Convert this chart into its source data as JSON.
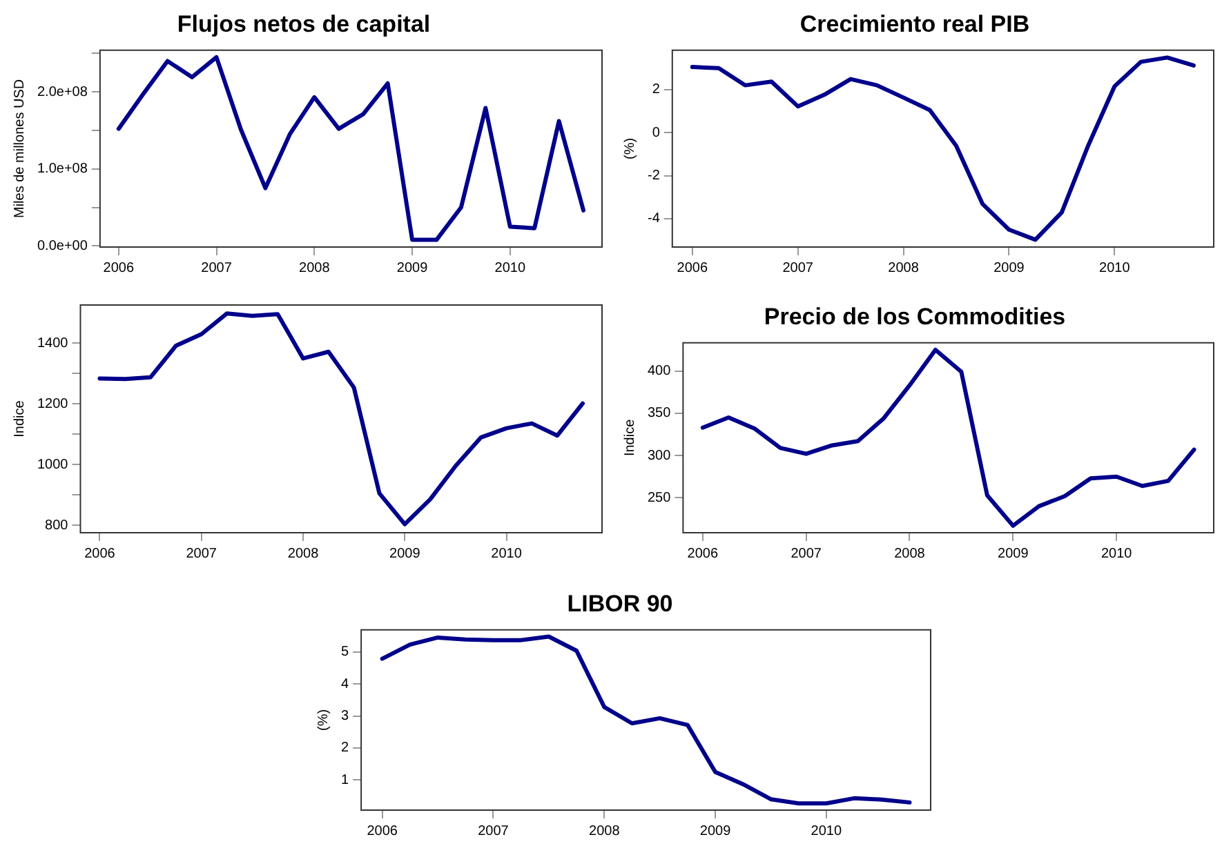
{
  "chart_data": [
    {
      "type": "line",
      "title": "Flujos netos de capital",
      "ylabel": "Miles de millones USD",
      "x": [
        2006,
        2006.25,
        2006.5,
        2006.75,
        2007,
        2007.25,
        2007.5,
        2007.75,
        2008,
        2008.25,
        2008.5,
        2008.75,
        2009,
        2009.25,
        2009.5,
        2009.75,
        2010,
        2010.25,
        2010.5,
        2010.75
      ],
      "series": [
        {
          "color": "#00008b",
          "values": [
            152000000,
            197000000,
            240000000,
            219000000,
            245000000,
            151000000,
            75000000,
            145000000,
            193000000,
            152000000,
            171000000,
            211000000,
            8000000,
            8000000,
            50000000,
            179000000,
            25000000,
            23000000,
            162000000,
            46000000
          ]
        }
      ],
      "xlim": [
        2005.81,
        2010.94
      ],
      "xticks": [
        2006,
        2007,
        2008,
        2009,
        2010
      ],
      "ylim": [
        -1500000,
        254000000
      ],
      "yticks": [
        {
          "value": 0,
          "label": "0.0e+00"
        },
        {
          "value": 50000000,
          "label": null
        },
        {
          "value": 100000000,
          "label": "1.0e+08"
        },
        {
          "value": 150000000,
          "label": null
        },
        {
          "value": 200000000,
          "label": "2.0e+08"
        },
        {
          "value": 250000000,
          "label": null
        }
      ],
      "grid": false,
      "legend": false,
      "line_style": "solid"
    },
    {
      "type": "line",
      "title": "Crecimiento real PIB",
      "ylabel": "(%)",
      "x": [
        2006,
        2006.25,
        2006.5,
        2006.75,
        2007,
        2007.25,
        2007.5,
        2007.75,
        2008,
        2008.25,
        2008.5,
        2008.75,
        2009,
        2009.25,
        2009.5,
        2009.75,
        2010,
        2010.25,
        2010.5,
        2010.75
      ],
      "series": [
        {
          "color": "#00008b",
          "values": [
            3.05,
            3.0,
            2.2,
            2.37,
            1.22,
            1.76,
            2.49,
            2.2,
            1.63,
            1.05,
            -0.61,
            -3.32,
            -4.51,
            -4.98,
            -3.71,
            -0.61,
            2.15,
            3.29,
            3.49,
            3.12
          ]
        }
      ],
      "xlim": [
        2005.81,
        2010.94
      ],
      "xticks": [
        2006,
        2007,
        2008,
        2009,
        2010
      ],
      "ylim": [
        -5.32,
        3.83
      ],
      "yticks": [
        -4,
        -2,
        0,
        2
      ],
      "grid": false,
      "legend": false,
      "line_style": "solid"
    },
    {
      "type": "line",
      "ylabel": "Indice",
      "x": [
        2006,
        2006.25,
        2006.5,
        2006.75,
        2007,
        2007.25,
        2007.5,
        2007.75,
        2008,
        2008.25,
        2008.5,
        2008.75,
        2009,
        2009.25,
        2009.5,
        2009.75,
        2010,
        2010.25,
        2010.5,
        2010.75
      ],
      "series": [
        {
          "color": "#00008b",
          "values": [
            1284,
            1282,
            1288,
            1392,
            1430,
            1498,
            1490,
            1496,
            1350,
            1372,
            1254,
            906,
            804,
            886,
            996,
            1090,
            1120,
            1136,
            1096,
            1202
          ]
        }
      ],
      "xlim": [
        2005.81,
        2010.94
      ],
      "xticks": [
        2006,
        2007,
        2008,
        2009,
        2010
      ],
      "ylim": [
        776,
        1526
      ],
      "yticks": [
        800,
        {
          "value": 900,
          "label": null
        },
        1000,
        {
          "value": 1100,
          "label": null
        },
        1200,
        {
          "value": 1300,
          "label": null
        },
        1400
      ],
      "grid": false,
      "legend": false,
      "line_style": "solid"
    },
    {
      "type": "line",
      "title": "Precio de los Commodities",
      "ylabel": "Indice",
      "x": [
        2006,
        2006.25,
        2006.5,
        2006.75,
        2007,
        2007.25,
        2007.5,
        2007.75,
        2008,
        2008.25,
        2008.5,
        2008.75,
        2009,
        2009.25,
        2009.5,
        2009.75,
        2010,
        2010.25,
        2010.5,
        2010.75
      ],
      "series": [
        {
          "color": "#00008b",
          "values": [
            333,
            345,
            332,
            309,
            302,
            312,
            317,
            344,
            383,
            425,
            399,
            253,
            217,
            240,
            252,
            273,
            275,
            264,
            270,
            307
          ]
        }
      ],
      "xlim": [
        2005.81,
        2010.94
      ],
      "xticks": [
        2006,
        2007,
        2008,
        2009,
        2010
      ],
      "ylim": [
        208.7,
        433.3
      ],
      "yticks": [
        250,
        300,
        350,
        400
      ],
      "grid": false,
      "legend": false,
      "line_style": "solid"
    },
    {
      "type": "line",
      "title": "LIBOR 90",
      "ylabel": "(%)",
      "x": [
        2006,
        2006.25,
        2006.5,
        2006.75,
        2007,
        2007.25,
        2007.5,
        2007.75,
        2008,
        2008.25,
        2008.5,
        2008.75,
        2009,
        2009.25,
        2009.5,
        2009.75,
        2010,
        2010.25,
        2010.5,
        2010.75
      ],
      "series": [
        {
          "color": "#00008b",
          "values": [
            4.79,
            5.23,
            5.45,
            5.39,
            5.37,
            5.37,
            5.48,
            5.04,
            3.28,
            2.77,
            2.93,
            2.72,
            1.25,
            0.87,
            0.4,
            0.27,
            0.27,
            0.43,
            0.39,
            0.3
          ]
        }
      ],
      "xlim": [
        2005.81,
        2010.94
      ],
      "xticks": [
        2006,
        2007,
        2008,
        2009,
        2010
      ],
      "ylim": [
        0.06,
        5.69
      ],
      "yticks": [
        1,
        2,
        3,
        4,
        5
      ],
      "grid": false,
      "legend": false,
      "line_style": "solid"
    }
  ]
}
